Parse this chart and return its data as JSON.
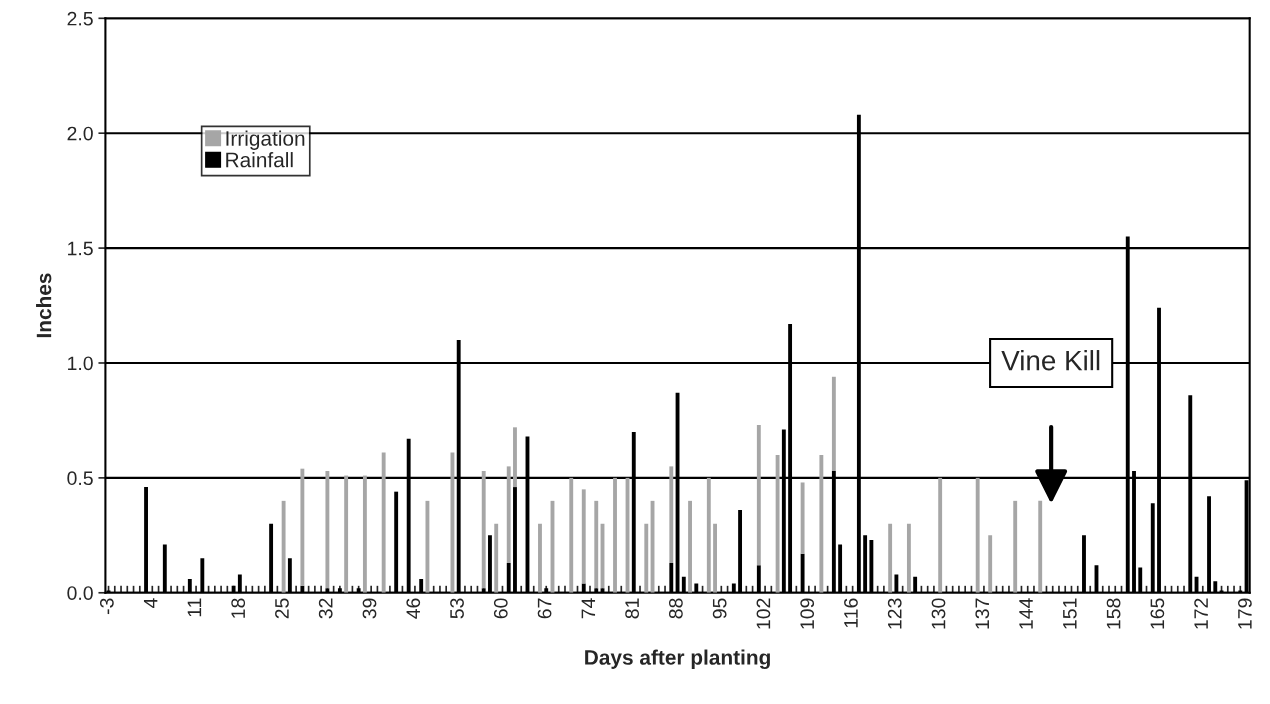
{
  "chart_data": {
    "type": "bar",
    "xlabel": "Days after planting",
    "ylabel": "Inches",
    "xlim": [
      -3.5,
      179.5
    ],
    "ylim": [
      0,
      2.5
    ],
    "yticks": [
      {
        "value": 0,
        "label": "0.0"
      },
      {
        "value": 0.5,
        "label": "0.5"
      },
      {
        "value": 1,
        "label": "1.0"
      },
      {
        "value": 1.5,
        "label": "1.5"
      },
      {
        "value": 2,
        "label": "2.0"
      },
      {
        "value": 2.5,
        "label": "2.5"
      }
    ],
    "xticks": [
      -3,
      {
        "value": -2,
        "label": null
      },
      {
        "value": -1,
        "label": null
      },
      {
        "value": 0,
        "label": null
      },
      {
        "value": 1,
        "label": null
      },
      {
        "value": 2,
        "label": null
      },
      {
        "value": 3,
        "label": null
      },
      4,
      {
        "value": 5,
        "label": null
      },
      {
        "value": 6,
        "label": null
      },
      {
        "value": 7,
        "label": null
      },
      {
        "value": 8,
        "label": null
      },
      {
        "value": 9,
        "label": null
      },
      {
        "value": 10,
        "label": null
      },
      11,
      {
        "value": 12,
        "label": null
      },
      {
        "value": 13,
        "label": null
      },
      {
        "value": 14,
        "label": null
      },
      {
        "value": 15,
        "label": null
      },
      {
        "value": 16,
        "label": null
      },
      {
        "value": 17,
        "label": null
      },
      18,
      {
        "value": 19,
        "label": null
      },
      {
        "value": 20,
        "label": null
      },
      {
        "value": 21,
        "label": null
      },
      {
        "value": 22,
        "label": null
      },
      {
        "value": 23,
        "label": null
      },
      {
        "value": 24,
        "label": null
      },
      25,
      {
        "value": 26,
        "label": null
      },
      {
        "value": 27,
        "label": null
      },
      {
        "value": 28,
        "label": null
      },
      {
        "value": 29,
        "label": null
      },
      {
        "value": 30,
        "label": null
      },
      {
        "value": 31,
        "label": null
      },
      32,
      {
        "value": 33,
        "label": null
      },
      {
        "value": 34,
        "label": null
      },
      {
        "value": 35,
        "label": null
      },
      {
        "value": 36,
        "label": null
      },
      {
        "value": 37,
        "label": null
      },
      {
        "value": 38,
        "label": null
      },
      39,
      {
        "value": 40,
        "label": null
      },
      {
        "value": 41,
        "label": null
      },
      {
        "value": 42,
        "label": null
      },
      {
        "value": 43,
        "label": null
      },
      {
        "value": 44,
        "label": null
      },
      {
        "value": 45,
        "label": null
      },
      46,
      {
        "value": 47,
        "label": null
      },
      {
        "value": 48,
        "label": null
      },
      {
        "value": 49,
        "label": null
      },
      {
        "value": 50,
        "label": null
      },
      {
        "value": 51,
        "label": null
      },
      {
        "value": 52,
        "label": null
      },
      53,
      {
        "value": 54,
        "label": null
      },
      {
        "value": 55,
        "label": null
      },
      {
        "value": 56,
        "label": null
      },
      {
        "value": 57,
        "label": null
      },
      {
        "value": 58,
        "label": null
      },
      {
        "value": 59,
        "label": null
      },
      60,
      {
        "value": 61,
        "label": null
      },
      {
        "value": 62,
        "label": null
      },
      {
        "value": 63,
        "label": null
      },
      {
        "value": 64,
        "label": null
      },
      {
        "value": 65,
        "label": null
      },
      {
        "value": 66,
        "label": null
      },
      67,
      {
        "value": 68,
        "label": null
      },
      {
        "value": 69,
        "label": null
      },
      {
        "value": 70,
        "label": null
      },
      {
        "value": 71,
        "label": null
      },
      {
        "value": 72,
        "label": null
      },
      {
        "value": 73,
        "label": null
      },
      74,
      {
        "value": 75,
        "label": null
      },
      {
        "value": 76,
        "label": null
      },
      {
        "value": 77,
        "label": null
      },
      {
        "value": 78,
        "label": null
      },
      {
        "value": 79,
        "label": null
      },
      {
        "value": 80,
        "label": null
      },
      81,
      {
        "value": 82,
        "label": null
      },
      {
        "value": 83,
        "label": null
      },
      {
        "value": 84,
        "label": null
      },
      {
        "value": 85,
        "label": null
      },
      {
        "value": 86,
        "label": null
      },
      {
        "value": 87,
        "label": null
      },
      88,
      {
        "value": 89,
        "label": null
      },
      {
        "value": 90,
        "label": null
      },
      {
        "value": 91,
        "label": null
      },
      {
        "value": 92,
        "label": null
      },
      {
        "value": 93,
        "label": null
      },
      {
        "value": 94,
        "label": null
      },
      95,
      {
        "value": 96,
        "label": null
      },
      {
        "value": 97,
        "label": null
      },
      {
        "value": 98,
        "label": null
      },
      {
        "value": 99,
        "label": null
      },
      {
        "value": 100,
        "label": null
      },
      {
        "value": 101,
        "label": null
      },
      102,
      {
        "value": 103,
        "label": null
      },
      {
        "value": 104,
        "label": null
      },
      {
        "value": 105,
        "label": null
      },
      {
        "value": 106,
        "label": null
      },
      {
        "value": 107,
        "label": null
      },
      {
        "value": 108,
        "label": null
      },
      109,
      {
        "value": 110,
        "label": null
      },
      {
        "value": 111,
        "label": null
      },
      {
        "value": 112,
        "label": null
      },
      {
        "value": 113,
        "label": null
      },
      {
        "value": 114,
        "label": null
      },
      {
        "value": 115,
        "label": null
      },
      116,
      {
        "value": 117,
        "label": null
      },
      {
        "value": 118,
        "label": null
      },
      {
        "value": 119,
        "label": null
      },
      {
        "value": 120,
        "label": null
      },
      {
        "value": 121,
        "label": null
      },
      {
        "value": 122,
        "label": null
      },
      123,
      {
        "value": 124,
        "label": null
      },
      {
        "value": 125,
        "label": null
      },
      {
        "value": 126,
        "label": null
      },
      {
        "value": 127,
        "label": null
      },
      {
        "value": 128,
        "label": null
      },
      {
        "value": 129,
        "label": null
      },
      130,
      {
        "value": 131,
        "label": null
      },
      {
        "value": 132,
        "label": null
      },
      {
        "value": 133,
        "label": null
      },
      {
        "value": 134,
        "label": null
      },
      {
        "value": 135,
        "label": null
      },
      {
        "value": 136,
        "label": null
      },
      137,
      {
        "value": 138,
        "label": null
      },
      {
        "value": 139,
        "label": null
      },
      {
        "value": 140,
        "label": null
      },
      {
        "value": 141,
        "label": null
      },
      {
        "value": 142,
        "label": null
      },
      {
        "value": 143,
        "label": null
      },
      144,
      {
        "value": 145,
        "label": null
      },
      {
        "value": 146,
        "label": null
      },
      {
        "value": 147,
        "label": null
      },
      {
        "value": 148,
        "label": null
      },
      {
        "value": 149,
        "label": null
      },
      {
        "value": 150,
        "label": null
      },
      151,
      {
        "value": 152,
        "label": null
      },
      {
        "value": 153,
        "label": null
      },
      {
        "value": 154,
        "label": null
      },
      {
        "value": 155,
        "label": null
      },
      {
        "value": 156,
        "label": null
      },
      {
        "value": 157,
        "label": null
      },
      158,
      {
        "value": 159,
        "label": null
      },
      {
        "value": 160,
        "label": null
      },
      {
        "value": 161,
        "label": null
      },
      {
        "value": 162,
        "label": null
      },
      {
        "value": 163,
        "label": null
      },
      {
        "value": 164,
        "label": null
      },
      165,
      {
        "value": 166,
        "label": null
      },
      {
        "value": 167,
        "label": null
      },
      {
        "value": 168,
        "label": null
      },
      {
        "value": 169,
        "label": null
      },
      {
        "value": 170,
        "label": null
      },
      {
        "value": 171,
        "label": null
      },
      172,
      {
        "value": 173,
        "label": null
      },
      {
        "value": 174,
        "label": null
      },
      {
        "value": 175,
        "label": null
      },
      {
        "value": 176,
        "label": null
      },
      {
        "value": 177,
        "label": null
      },
      {
        "value": 178,
        "label": null
      },
      179
    ],
    "grid": "y",
    "legend": "top left",
    "series": [
      {
        "name": "Rainfall",
        "color": "#000000",
        "x": [
          -3,
          3,
          6,
          10,
          12,
          17,
          18,
          23,
          26,
          28,
          32,
          34,
          37,
          43,
          45,
          47,
          53,
          57,
          58,
          61,
          62,
          64,
          67,
          73,
          75,
          76,
          81,
          87,
          88,
          89,
          91,
          97,
          98,
          101,
          105,
          106,
          108,
          113,
          114,
          117,
          118,
          119,
          123,
          126,
          153,
          155,
          160,
          161,
          162,
          164,
          165,
          170,
          171,
          173,
          174,
          175,
          178,
          179
        ],
        "values": [
          0.01,
          0.46,
          0.21,
          0.06,
          0.15,
          0.03,
          0.08,
          0.3,
          0.15,
          0.03,
          0.02,
          0.02,
          0.02,
          0.44,
          0.67,
          0.06,
          1.1,
          0.02,
          0.25,
          0.13,
          0.46,
          0.68,
          0.02,
          0.04,
          0.02,
          0.02,
          0.7,
          0.13,
          0.87,
          0.07,
          0.04,
          0.04,
          0.36,
          0.12,
          0.71,
          1.17,
          0.17,
          0.53,
          0.21,
          2.08,
          0.25,
          0.23,
          0.08,
          0.07,
          0.25,
          0.12,
          1.55,
          0.53,
          0.11,
          0.39,
          1.24,
          0.86,
          0.07,
          0.42,
          0.05,
          0.01,
          0.01,
          0.49
        ]
      },
      {
        "name": "Irrigation",
        "color": "#a6a6a6",
        "x": [
          25,
          28,
          32,
          35,
          38,
          41,
          48,
          52,
          57,
          59,
          61,
          62,
          66,
          68,
          71,
          73,
          75,
          76,
          78,
          80,
          83,
          84,
          87,
          90,
          93,
          94,
          101,
          104,
          108,
          111,
          113,
          122,
          125,
          130,
          136,
          138,
          142,
          146
        ],
        "values": [
          0.4,
          0.51,
          0.51,
          0.51,
          0.51,
          0.61,
          0.4,
          0.61,
          0.51,
          0.3,
          0.42,
          0.26,
          0.3,
          0.4,
          0.5,
          0.41,
          0.38,
          0.28,
          0.5,
          0.5,
          0.3,
          0.4,
          0.42,
          0.4,
          0.5,
          0.3,
          0.61,
          0.6,
          0.31,
          0.6,
          0.41,
          0.3,
          0.3,
          0.5,
          0.5,
          0.25,
          0.4,
          0.4
        ],
        "base": [
          0,
          0.03,
          0.02,
          0,
          0,
          0,
          0,
          0,
          0.02,
          0,
          0.13,
          0.46,
          0,
          0,
          0,
          0.04,
          0.02,
          0.02,
          0,
          0,
          0,
          0,
          0.13,
          0,
          0,
          0,
          0.12,
          0,
          0.17,
          0,
          0.53,
          0,
          0,
          0,
          0,
          0,
          0,
          0
        ]
      }
    ],
    "annotations": [
      "Vine Kill"
    ]
  }
}
